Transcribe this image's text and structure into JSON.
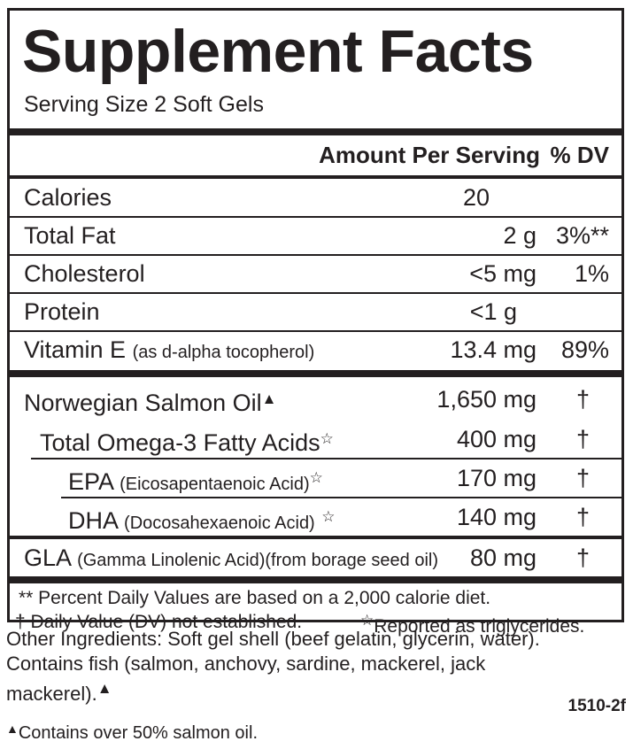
{
  "panel": {
    "title": "Supplement Facts",
    "serving_size": "Serving Size 2 Soft Gels",
    "header": {
      "amount": "Amount Per Serving",
      "dv": "% DV"
    }
  },
  "rows": {
    "calories": {
      "name": "Calories",
      "amount": "20",
      "dv": ""
    },
    "total_fat": {
      "name": "Total Fat",
      "amount": "2 g",
      "dv": "3%**"
    },
    "cholesterol": {
      "name": "Cholesterol",
      "amount": "<5 mg",
      "dv": "1%"
    },
    "protein": {
      "name": "Protein",
      "amount": "<1 g",
      "dv": ""
    },
    "vitamin_e": {
      "name": "Vitamin E",
      "sub": "(as d-alpha tocopherol)",
      "amount": "13.4 mg",
      "dv": "89%"
    },
    "salmon_oil": {
      "name": "Norwegian Salmon Oil",
      "symbol": "▲",
      "amount": "1,650 mg",
      "dv": "†"
    },
    "omega3": {
      "name": "Total Omega-3 Fatty Acids",
      "symbol": "☆",
      "amount": "400 mg",
      "dv": "†"
    },
    "epa": {
      "name": "EPA",
      "sub": "(Eicosapentaenoic Acid)",
      "symbol": "☆",
      "amount": "170 mg",
      "dv": "†"
    },
    "dha": {
      "name": "DHA",
      "sub": "(Docosahexaenoic Acid)",
      "symbol": "☆",
      "amount": "140 mg",
      "dv": "†"
    },
    "gla": {
      "name": "GLA",
      "sub": "(Gamma Linolenic Acid)(from borage seed oil)",
      "amount": "80 mg",
      "dv": "†"
    }
  },
  "footnotes": {
    "percent_dv": "** Percent Daily Values are based on a 2,000 calorie diet.",
    "dagger": "† Daily Value (DV) not established.",
    "star_symbol": "☆",
    "star": "Reported as triglycerides."
  },
  "other_ingredients": {
    "text": "Other Ingredients: Soft gel shell (beef gelatin, glycerin, water). Contains fish (salmon, anchovy, sardine, mackerel, jack mackerel).",
    "symbol": "▲"
  },
  "product_code": "1510-2f",
  "salmon_note": {
    "symbol": "▲",
    "text": "Contains over 50% salmon oil."
  }
}
